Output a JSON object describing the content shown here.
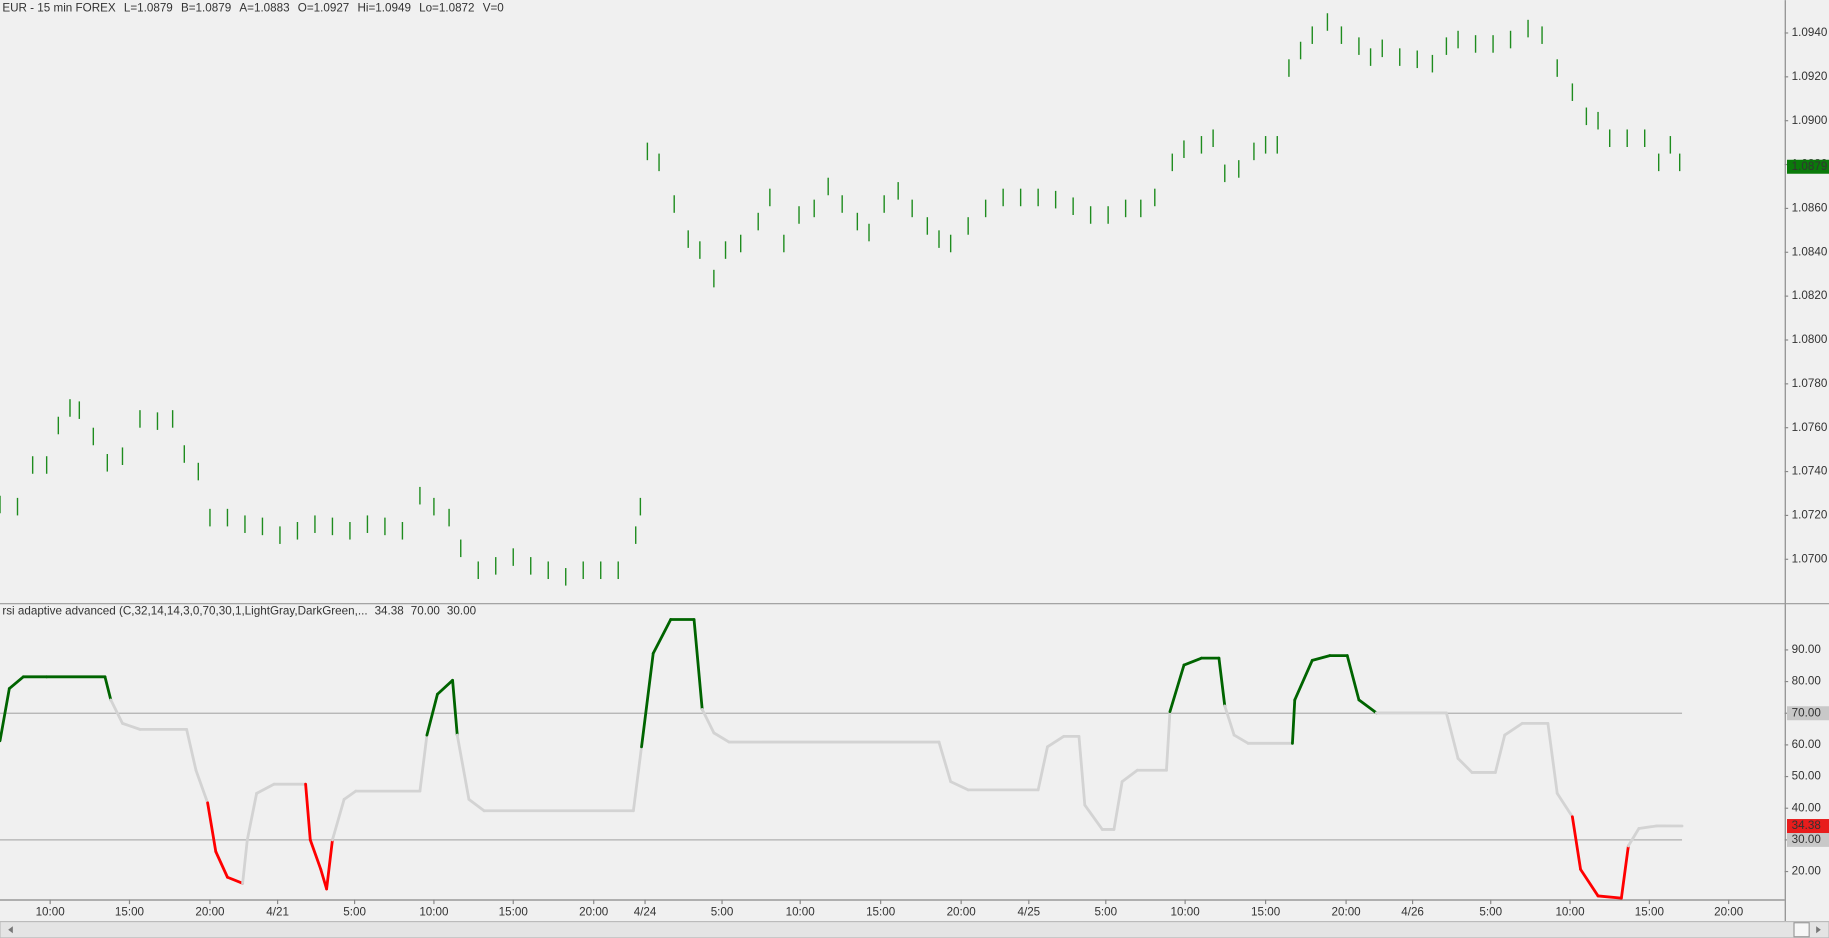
{
  "chart_data": [
    {
      "type": "ohlc",
      "symbol": "EUR - 15 min  FOREX",
      "quote": [
        "L=1.0879",
        "B=1.0879",
        "A=1.0883",
        "O=1.0927",
        "Hi=1.0949",
        "Lo=1.0872",
        "V=0"
      ],
      "color": "#1e8c1e",
      "x": [
        0,
        15,
        28,
        40,
        50,
        60,
        68,
        80,
        92,
        105,
        120,
        135,
        148,
        158,
        170,
        180,
        195,
        210,
        225,
        240,
        255,
        270,
        285,
        300,
        315,
        330,
        345,
        360,
        372,
        385,
        395,
        410,
        425,
        440,
        455,
        470,
        485,
        500,
        515,
        530,
        545,
        549,
        555,
        565,
        578,
        590,
        600,
        612,
        622,
        635,
        650,
        660,
        672,
        685,
        698,
        710,
        722,
        735,
        745,
        758,
        770,
        782,
        795,
        805,
        815,
        830,
        845,
        860,
        875,
        890,
        905,
        920,
        935,
        950,
        965,
        978,
        990,
        1005,
        1015,
        1030,
        1040,
        1050,
        1062,
        1075,
        1085,
        1095,
        1105,
        1115,
        1125,
        1138,
        1150,
        1165,
        1175,
        1185,
        1200,
        1215,
        1228,
        1240,
        1250,
        1265,
        1280,
        1295,
        1310,
        1322,
        1335,
        1348,
        1360,
        1370,
        1380,
        1395,
        1410,
        1422,
        1432,
        1440
      ],
      "high": [
        1.0729,
        1.0728,
        1.0747,
        1.0747,
        1.0765,
        1.0773,
        1.0772,
        1.076,
        1.0748,
        1.0751,
        1.0768,
        1.0767,
        1.0768,
        1.0752,
        1.0744,
        1.0723,
        1.0723,
        1.072,
        1.0719,
        1.0715,
        1.0717,
        1.072,
        1.0719,
        1.0717,
        1.072,
        1.0719,
        1.0717,
        1.0733,
        1.0728,
        1.0723,
        1.0709,
        1.0699,
        1.0701,
        1.0705,
        1.0701,
        1.0699,
        1.0696,
        1.0699,
        1.0699,
        1.0699,
        1.0715,
        1.0728,
        1.089,
        1.0885,
        1.0866,
        1.085,
        1.0845,
        1.0832,
        1.0845,
        1.0848,
        1.0858,
        1.0869,
        1.0848,
        1.0861,
        1.0864,
        1.0874,
        1.0866,
        1.0858,
        1.0853,
        1.0866,
        1.0872,
        1.0864,
        1.0856,
        1.085,
        1.0848,
        1.0856,
        1.0864,
        1.0869,
        1.0869,
        1.0869,
        1.0868,
        1.0865,
        1.0861,
        1.0861,
        1.0864,
        1.0864,
        1.0869,
        1.0885,
        1.0891,
        1.0893,
        1.0896,
        1.088,
        1.0882,
        1.089,
        1.0893,
        1.0893,
        1.0928,
        1.0936,
        1.0943,
        1.0949,
        1.0943,
        1.0938,
        1.0933,
        1.0937,
        1.0933,
        1.0932,
        1.093,
        1.0938,
        1.0941,
        1.0939,
        1.0939,
        1.0941,
        1.0946,
        1.0943,
        1.0928,
        1.0917,
        1.0906,
        1.0904,
        1.0896,
        1.0896,
        1.0896,
        1.0885,
        1.0893,
        1.0885
      ],
      "low": [
        1.0721,
        1.072,
        1.0739,
        1.0739,
        1.0757,
        1.0765,
        1.0764,
        1.0752,
        1.074,
        1.0743,
        1.076,
        1.0759,
        1.076,
        1.0744,
        1.0736,
        1.0715,
        1.0715,
        1.0712,
        1.0711,
        1.0707,
        1.0709,
        1.0712,
        1.0711,
        1.0709,
        1.0712,
        1.0711,
        1.0709,
        1.0725,
        1.072,
        1.0715,
        1.0701,
        1.0691,
        1.0693,
        1.0697,
        1.0693,
        1.0691,
        1.0688,
        1.0691,
        1.0691,
        1.0691,
        1.0707,
        1.072,
        1.0882,
        1.0877,
        1.0858,
        1.0842,
        1.0837,
        1.0824,
        1.0837,
        1.084,
        1.085,
        1.0861,
        1.084,
        1.0853,
        1.0856,
        1.0866,
        1.0858,
        1.085,
        1.0845,
        1.0858,
        1.0864,
        1.0856,
        1.0848,
        1.0842,
        1.084,
        1.0848,
        1.0856,
        1.0861,
        1.0861,
        1.0861,
        1.086,
        1.0857,
        1.0853,
        1.0853,
        1.0856,
        1.0856,
        1.0861,
        1.0877,
        1.0883,
        1.0885,
        1.0888,
        1.0872,
        1.0874,
        1.0882,
        1.0885,
        1.0885,
        1.092,
        1.0928,
        1.0935,
        1.0941,
        1.0935,
        1.093,
        1.0925,
        1.0929,
        1.0925,
        1.0924,
        1.0922,
        1.093,
        1.0933,
        1.0931,
        1.0931,
        1.0933,
        1.0938,
        1.0935,
        1.092,
        1.0909,
        1.0898,
        1.0896,
        1.0888,
        1.0888,
        1.0888,
        1.0877,
        1.0885,
        1.0877
      ],
      "last_price": 1.0879,
      "xlim": [
        0,
        1530
      ],
      "ylim": [
        1.068,
        1.0955
      ],
      "yticks": [
        {
          "value": 1.07,
          "label": "1.0700"
        },
        {
          "value": 1.072,
          "label": "1.0720"
        },
        {
          "value": 1.074,
          "label": "1.0740"
        },
        {
          "value": 1.076,
          "label": "1.0760"
        },
        {
          "value": 1.078,
          "label": "1.0780"
        },
        {
          "value": 1.08,
          "label": "1.0800"
        },
        {
          "value": 1.082,
          "label": "1.0820"
        },
        {
          "value": 1.084,
          "label": "1.0840"
        },
        {
          "value": 1.086,
          "label": "1.0860"
        },
        {
          "value": 1.088,
          "label": "1.0880"
        },
        {
          "value": 1.09,
          "label": "1.0900"
        },
        {
          "value": 1.092,
          "label": "1.0920"
        },
        {
          "value": 1.094,
          "label": "1.0940"
        }
      ]
    },
    {
      "type": "line",
      "title": "rsi adaptive advanced (C,32,14,14,3,0,70,30,1,LightGray,DarkGreen,...",
      "x": [
        0,
        8,
        20,
        40,
        90,
        95,
        105,
        120,
        160,
        168,
        178,
        185,
        195,
        208,
        212,
        220,
        235,
        262,
        266,
        275,
        280,
        285,
        295,
        305,
        360,
        366,
        375,
        388,
        392,
        402,
        415,
        543,
        550,
        560,
        575,
        595,
        602,
        612,
        625,
        805,
        815,
        830,
        890,
        898,
        912,
        925,
        930,
        945,
        955,
        962,
        975,
        1000,
        1003,
        1015,
        1030,
        1045,
        1050,
        1058,
        1070,
        1108,
        1110,
        1125,
        1140,
        1155,
        1165,
        1180,
        1240,
        1250,
        1262,
        1282,
        1290,
        1305,
        1327,
        1335,
        1348,
        1355,
        1370,
        1390,
        1396,
        1405,
        1420,
        1442
      ],
      "values": [
        61.3,
        77.8,
        81.5,
        81.5,
        81.5,
        74.2,
        66.8,
        64.9,
        64.9,
        52.0,
        41.7,
        26.3,
        18.2,
        16.3,
        30.0,
        44.7,
        47.6,
        47.6,
        30.0,
        20.7,
        14.5,
        30.0,
        42.8,
        45.4,
        45.4,
        63.1,
        76.0,
        80.4,
        63.1,
        42.8,
        39.2,
        39.2,
        59.4,
        88.9,
        99.6,
        99.6,
        71.2,
        63.8,
        60.9,
        60.9,
        48.4,
        45.8,
        45.8,
        59.4,
        62.7,
        62.7,
        41.0,
        33.3,
        33.3,
        48.4,
        52.0,
        52.0,
        70.5,
        85.2,
        87.4,
        87.4,
        72.3,
        63.1,
        60.5,
        60.5,
        74.2,
        86.7,
        88.2,
        88.2,
        74.2,
        70.1,
        70.1,
        55.7,
        51.3,
        51.3,
        63.1,
        66.8,
        66.8,
        44.7,
        37.3,
        20.7,
        12.3,
        11.6,
        28.1,
        33.6,
        34.4,
        34.38
      ],
      "colors": [
        "DarkGreen",
        "DarkGreen",
        "DarkGreen",
        "DarkGreen",
        "DarkGreen",
        "DarkGreen",
        "LightGray",
        "LightGray",
        "LightGray",
        "LightGray",
        "LightGray",
        "Red",
        "Red",
        "Red",
        "LightGray",
        "LightGray",
        "LightGray",
        "LightGray",
        "Red",
        "Red",
        "Red",
        "Red",
        "LightGray",
        "LightGray",
        "LightGray",
        "LightGray",
        "DarkGreen",
        "DarkGreen",
        "DarkGreen",
        "LightGray",
        "LightGray",
        "LightGray",
        "LightGray",
        "DarkGreen",
        "DarkGreen",
        "DarkGreen",
        "DarkGreen",
        "LightGray",
        "LightGray",
        "LightGray",
        "LightGray",
        "LightGray",
        "LightGray",
        "LightGray",
        "LightGray",
        "LightGray",
        "LightGray",
        "LightGray",
        "LightGray",
        "LightGray",
        "LightGray",
        "LightGray",
        "LightGray",
        "DarkGreen",
        "DarkGreen",
        "DarkGreen",
        "DarkGreen",
        "LightGray",
        "LightGray",
        "LightGray",
        "DarkGreen",
        "DarkGreen",
        "DarkGreen",
        "DarkGreen",
        "DarkGreen",
        "DarkGreen",
        "LightGray",
        "LightGray",
        "LightGray",
        "LightGray",
        "LightGray",
        "LightGray",
        "LightGray",
        "LightGray",
        "LightGray",
        "Red",
        "Red",
        "Red",
        "Red",
        "LightGray",
        "LightGray",
        "LightGray"
      ],
      "last_value": 34.38,
      "levels": [
        {
          "value": 70,
          "label": "70.00"
        },
        {
          "value": 30,
          "label": "30.00"
        }
      ],
      "xlim": [
        0,
        1530
      ],
      "ylim": [
        11.2,
        104.4
      ],
      "yticks": [
        {
          "value": 20,
          "label": "20.00"
        },
        {
          "value": 30,
          "label": "30.00"
        },
        {
          "value": 40,
          "label": "40.00"
        },
        {
          "value": 50,
          "label": "50.00"
        },
        {
          "value": 60,
          "label": "60.00"
        },
        {
          "value": 70,
          "label": "70.00"
        },
        {
          "value": 80,
          "label": "80.00"
        },
        {
          "value": 90,
          "label": "90.00"
        }
      ],
      "xticks": [
        {
          "value": 43,
          "label": "10:00"
        },
        {
          "value": 111,
          "label": "15:00"
        },
        {
          "value": 180,
          "label": "20:00"
        },
        {
          "value": 238,
          "label": "4/21"
        },
        {
          "value": 304,
          "label": "5:00"
        },
        {
          "value": 372,
          "label": "10:00"
        },
        {
          "value": 440,
          "label": "15:00"
        },
        {
          "value": 509,
          "label": "20:00"
        },
        {
          "value": 553,
          "label": "4/24"
        },
        {
          "value": 619,
          "label": "5:00"
        },
        {
          "value": 686,
          "label": "10:00"
        },
        {
          "value": 755,
          "label": "15:00"
        },
        {
          "value": 824,
          "label": "20:00"
        },
        {
          "value": 882,
          "label": "4/25"
        },
        {
          "value": 948,
          "label": "5:00"
        },
        {
          "value": 1016,
          "label": "10:00"
        },
        {
          "value": 1085,
          "label": "15:00"
        },
        {
          "value": 1154,
          "label": "20:00"
        },
        {
          "value": 1211,
          "label": "4/26"
        },
        {
          "value": 1278,
          "label": "5:00"
        },
        {
          "value": 1346,
          "label": "10:00"
        },
        {
          "value": 1414,
          "label": "15:00"
        },
        {
          "value": 1482,
          "label": "20:00"
        }
      ]
    }
  ]
}
